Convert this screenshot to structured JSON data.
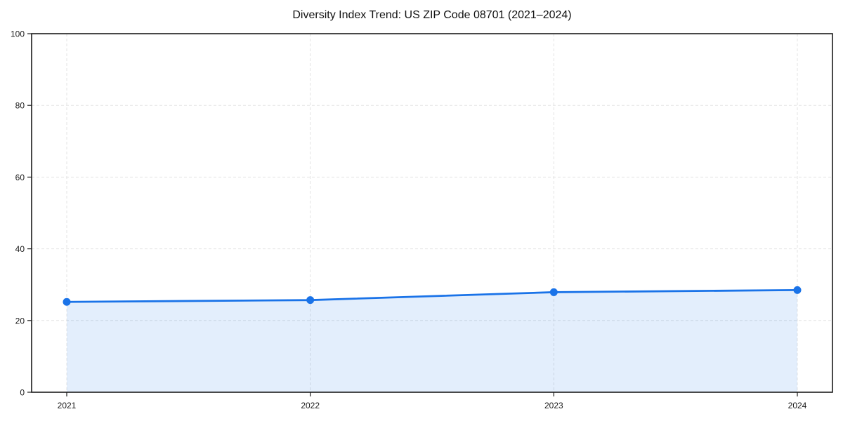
{
  "chart_data": {
    "type": "area",
    "title": "Diversity Index Trend: US ZIP Code 08701 (2021–2024)",
    "categories": [
      "2021",
      "2022",
      "2023",
      "2024"
    ],
    "values": [
      25.2,
      25.7,
      27.9,
      28.5
    ],
    "series": [
      {
        "name": "Diversity Index",
        "values": [
          25.2,
          25.7,
          27.9,
          28.5
        ]
      }
    ],
    "xlabel": "",
    "ylabel": "",
    "ylim": [
      0,
      100
    ],
    "yticks": [
      0,
      20,
      40,
      60,
      80,
      100
    ],
    "grid": "dashed",
    "legend_position": "none",
    "colors": {
      "line": "#1a73e8",
      "marker": "#1a73e8",
      "fill": "rgba(26,115,232,0.12)",
      "grid": "#e3e3e3",
      "spine": "#1c1c1c",
      "tick_text": "#1a1a1a",
      "background": "#ffffff"
    }
  }
}
